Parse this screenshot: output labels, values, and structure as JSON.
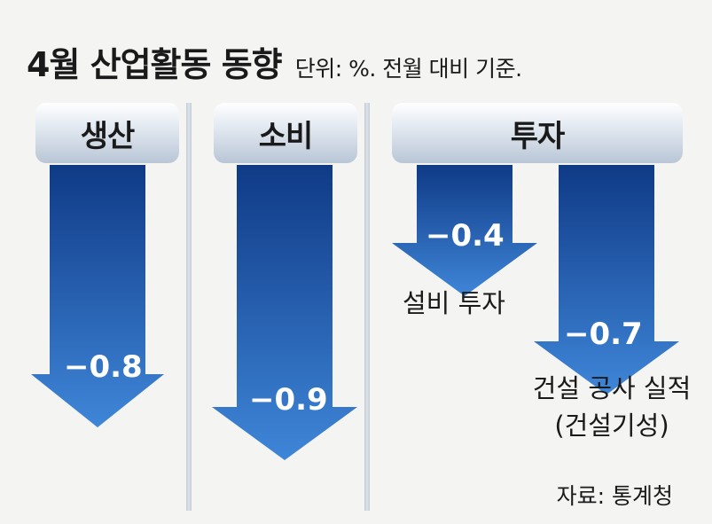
{
  "header": {
    "title": "4월 산업활동 동향",
    "subtitle": "단위: %. 전월 대비 기준."
  },
  "groups": [
    {
      "label": "생산"
    },
    {
      "label": "소비"
    },
    {
      "label": "투자"
    }
  ],
  "source": "자료: 통계청",
  "chart_data": {
    "type": "bar",
    "title": "4월 산업활동 동향",
    "subtitle": "단위: %. 전월 대비 기준.",
    "categories": [
      "생산",
      "소비",
      "설비 투자",
      "건설 공사 실적 (건설기성)"
    ],
    "values": [
      -0.8,
      -0.9,
      -0.4,
      -0.7
    ],
    "value_labels": [
      "−0.8",
      "−0.9",
      "−0.4",
      "−0.7"
    ],
    "series_labels": [
      "",
      "",
      "설비 투자",
      "건설 공사 실적"
    ],
    "series_sublabels": [
      "",
      "",
      "",
      "(건설기성)"
    ],
    "group_of_bar": [
      "생산",
      "소비",
      "투자",
      "투자"
    ],
    "arrow_color_top": "#0f3a86",
    "arrow_color_bottom": "#3f86d8",
    "orientation": "downward-arrows"
  }
}
